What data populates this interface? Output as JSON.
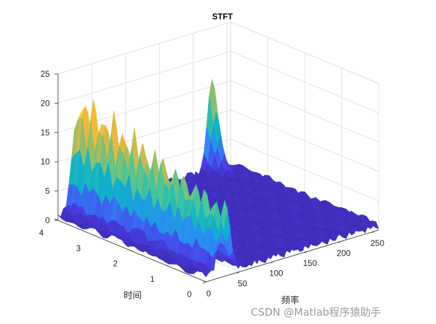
{
  "chart_data": {
    "type": "surface",
    "title": "STFT",
    "xlabel": "频率",
    "ylabel": "时间",
    "zlabel": "",
    "xlim": [
      0,
      256
    ],
    "ylim": [
      0,
      4
    ],
    "zlim": [
      0,
      25
    ],
    "xticks": [
      0,
      50,
      100,
      150,
      200,
      250
    ],
    "yticks": [
      0,
      1,
      2,
      3,
      4
    ],
    "zticks": [
      0,
      5,
      10,
      15,
      20,
      25
    ],
    "grid": true,
    "colormap": "parula",
    "colormap_stops": [
      "#3e26a8",
      "#4740e8",
      "#2e87f7",
      "#0fb1c9",
      "#43c69b",
      "#a3bd62",
      "#f3b73a",
      "#f9d528",
      "#f9fb15"
    ],
    "features": [
      {
        "frequency_bin": 28,
        "peak_magnitude": 21,
        "time_range": [
          0,
          4
        ]
      },
      {
        "frequency_bin": 228,
        "peak_magnitude": 16,
        "time_range": [
          3.4,
          4
        ]
      }
    ],
    "noise_floor_magnitude": 1.5
  },
  "watermark": "CSDN @Matlab程序猿助手"
}
